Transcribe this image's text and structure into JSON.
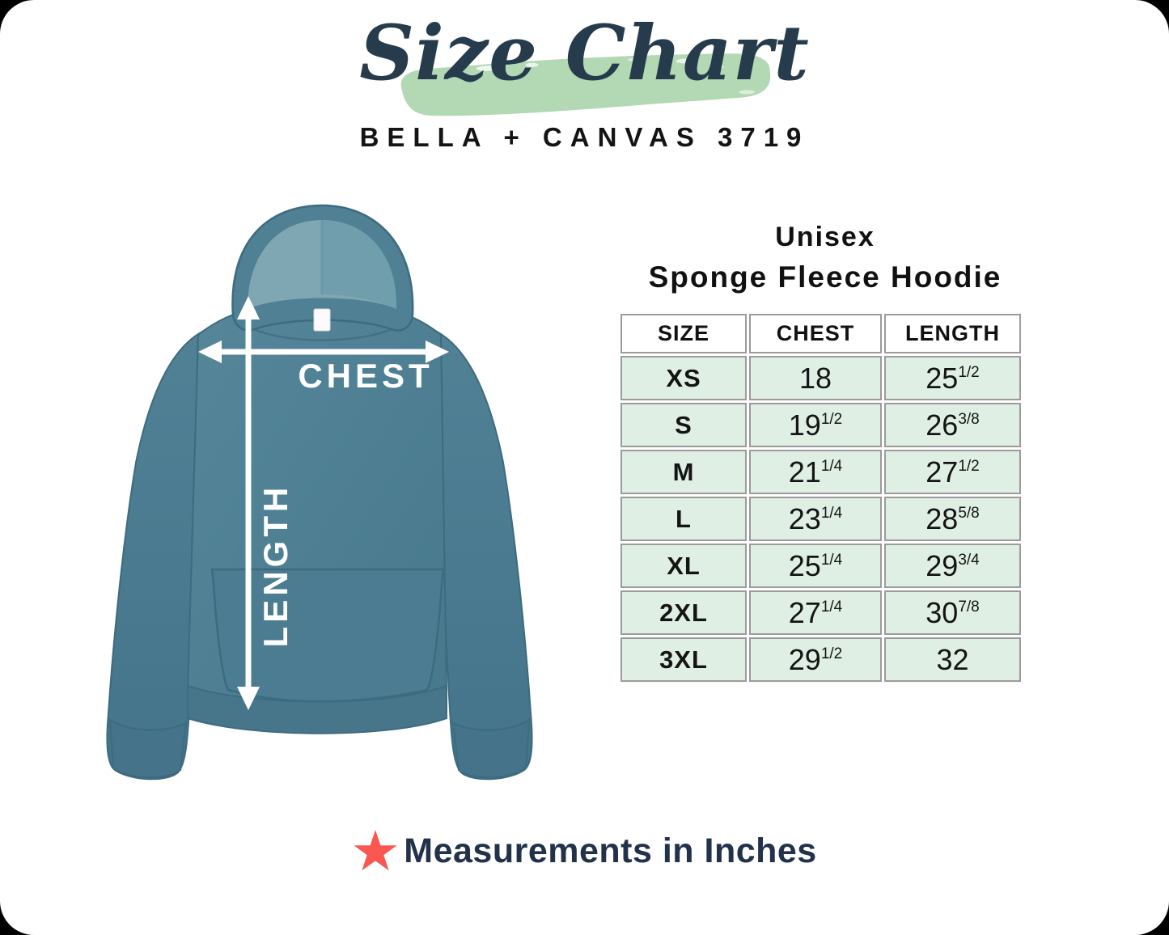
{
  "header": {
    "script_title": "Size Chart",
    "brand_line": "BELLA + CANVAS 3719"
  },
  "product": {
    "line1": "Unisex",
    "line2": "Sponge Fleece Hoodie"
  },
  "diagram": {
    "chest_label": "CHEST",
    "length_label": "LENGTH"
  },
  "footer": {
    "note": "Measurements in Inches"
  },
  "colors": {
    "brush_green": "#b2d8b4",
    "title_ink_navy": "#263c4c",
    "hoodie_teal": "#4f8094",
    "hood_inner_teal": "#7ea6b3",
    "table_row_mint": "#e0efe4",
    "table_border_gray": "#9b9b9b",
    "star_coral": "#f9574f",
    "footnote_navy": "#22324a",
    "arrow_white": "#ffffff"
  },
  "chart_data": {
    "type": "table",
    "title": "Unisex Sponge Fleece Hoodie",
    "subtitle": "BELLA + CANVAS 3719",
    "units": "inches",
    "columns": [
      "SIZE",
      "CHEST",
      "LENGTH"
    ],
    "rows": [
      {
        "size": "XS",
        "chest_display": "18",
        "chest_in": 18,
        "length_display": "25 1/2",
        "length_in": 25.5
      },
      {
        "size": "S",
        "chest_display": "19 1/2",
        "chest_in": 19.5,
        "length_display": "26 3/8",
        "length_in": 26.375
      },
      {
        "size": "M",
        "chest_display": "21 1/4",
        "chest_in": 21.25,
        "length_display": "27 1/2",
        "length_in": 27.5
      },
      {
        "size": "L",
        "chest_display": "23 1/4",
        "chest_in": 23.25,
        "length_display": "28 5/8",
        "length_in": 28.625
      },
      {
        "size": "XL",
        "chest_display": "25 1/4",
        "chest_in": 25.25,
        "length_display": "29 3/4",
        "length_in": 29.75
      },
      {
        "size": "2XL",
        "chest_display": "27 1/4",
        "chest_in": 27.25,
        "length_display": "30 7/8",
        "length_in": 30.875
      },
      {
        "size": "3XL",
        "chest_display": "29 1/2",
        "chest_in": 29.5,
        "length_display": "32",
        "length_in": 32
      }
    ]
  }
}
